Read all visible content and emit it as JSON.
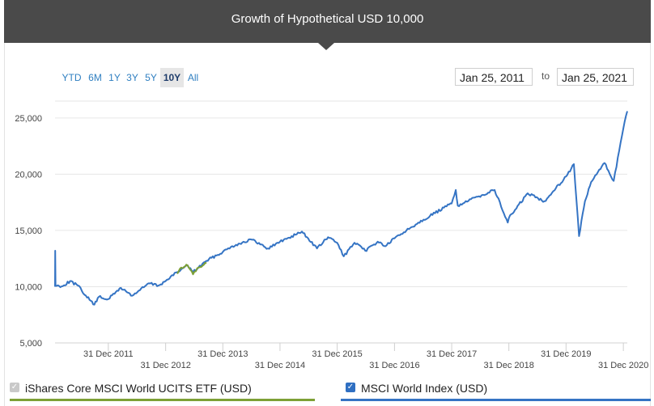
{
  "header": {
    "title": "Growth of Hypothetical USD 10,000"
  },
  "toolbar": {
    "ranges": [
      {
        "label": "YTD",
        "active": false
      },
      {
        "label": "6M",
        "active": false
      },
      {
        "label": "1Y",
        "active": false
      },
      {
        "label": "3Y",
        "active": false
      },
      {
        "label": "5Y",
        "active": false
      },
      {
        "label": "10Y",
        "active": true
      },
      {
        "label": "All",
        "active": false
      }
    ],
    "from_date": "Jan 25, 2011",
    "to_label": "to",
    "to_date": "Jan 25, 2021"
  },
  "legend": [
    {
      "label": "iShares Core MSCI World UCITS ETF (USD)",
      "checked": true,
      "color": "#7da036",
      "box_color": "#c9c9c9"
    },
    {
      "label": "MSCI World Index (USD)",
      "checked": true,
      "color": "#3574c4",
      "box_color": "#2f6fc2"
    }
  ],
  "chart_data": {
    "type": "line",
    "title": "Growth of Hypothetical USD 10,000",
    "xlabel": "",
    "ylabel": "",
    "ylim": [
      5000,
      26500
    ],
    "xlim": [
      "2011-01-25",
      "2021-01-25"
    ],
    "yticks": [
      5000,
      10000,
      15000,
      20000,
      25000
    ],
    "ytick_labels": [
      "5,000",
      "10,000",
      "15,000",
      "20,000",
      "25,000"
    ],
    "xtick_dates": [
      "2011-12-31",
      "2012-12-31",
      "2013-12-31",
      "2014-12-31",
      "2015-12-31",
      "2016-12-31",
      "2017-12-31",
      "2018-12-31",
      "2019-12-31",
      "2020-12-31"
    ],
    "xtick_labels": [
      "31 Dec 2011",
      "31 Dec 2012",
      "31 Dec 2013",
      "31 Dec 2014",
      "31 Dec 2015",
      "31 Dec 2016",
      "31 Dec 2017",
      "31 Dec 2018",
      "31 Dec 2019",
      "31 Dec 2020"
    ],
    "grid": true,
    "legend_position": "bottom",
    "series": [
      {
        "name": "MSCI World Index (USD)",
        "color": "#3574c4",
        "points": [
          [
            "2011-01-25",
            10000
          ],
          [
            "2011-01-26",
            13200
          ],
          [
            "2011-01-28",
            10100
          ],
          [
            "2011-03-15",
            10050
          ],
          [
            "2011-05-01",
            10500
          ],
          [
            "2011-06-20",
            10100
          ],
          [
            "2011-08-10",
            9200
          ],
          [
            "2011-10-03",
            8400
          ],
          [
            "2011-11-01",
            9100
          ],
          [
            "2011-12-31",
            8900
          ],
          [
            "2012-03-20",
            9900
          ],
          [
            "2012-06-01",
            9200
          ],
          [
            "2012-09-15",
            10300
          ],
          [
            "2012-11-15",
            10100
          ],
          [
            "2012-12-31",
            10500
          ],
          [
            "2013-03-15",
            11300
          ],
          [
            "2013-05-20",
            11900
          ],
          [
            "2013-06-24",
            11300
          ],
          [
            "2013-09-18",
            12300
          ],
          [
            "2013-12-31",
            13100
          ],
          [
            "2014-03-01",
            13600
          ],
          [
            "2014-06-30",
            14200
          ],
          [
            "2014-10-15",
            13400
          ],
          [
            "2014-12-31",
            14000
          ],
          [
            "2015-05-20",
            14900
          ],
          [
            "2015-08-24",
            13400
          ],
          [
            "2015-11-03",
            14400
          ],
          [
            "2015-12-31",
            13900
          ],
          [
            "2016-02-11",
            12700
          ],
          [
            "2016-04-20",
            13900
          ],
          [
            "2016-06-27",
            13200
          ],
          [
            "2016-09-15",
            14000
          ],
          [
            "2016-11-04",
            13600
          ],
          [
            "2016-12-31",
            14300
          ],
          [
            "2017-06-01",
            15700
          ],
          [
            "2017-12-31",
            17400
          ],
          [
            "2018-01-26",
            18600
          ],
          [
            "2018-02-08",
            17200
          ],
          [
            "2018-06-15",
            18000
          ],
          [
            "2018-10-01",
            18600
          ],
          [
            "2018-12-24",
            15700
          ],
          [
            "2018-12-31",
            16100
          ],
          [
            "2019-04-30",
            18300
          ],
          [
            "2019-08-15",
            17600
          ],
          [
            "2019-12-31",
            19800
          ],
          [
            "2020-02-19",
            20900
          ],
          [
            "2020-03-23",
            14500
          ],
          [
            "2020-04-30",
            17600
          ],
          [
            "2020-06-08",
            19300
          ],
          [
            "2020-09-02",
            21000
          ],
          [
            "2020-10-30",
            19400
          ],
          [
            "2020-12-31",
            24100
          ],
          [
            "2021-01-25",
            25600
          ]
        ]
      },
      {
        "name": "iShares Core MSCI World UCITS ETF (USD)",
        "color": "#7da036",
        "points": [
          [
            "2013-03-15",
            11150
          ],
          [
            "2013-04-10",
            11700
          ],
          [
            "2013-05-20",
            11900
          ],
          [
            "2013-06-24",
            11100
          ],
          [
            "2013-07-30",
            11700
          ],
          [
            "2013-09-18",
            12100
          ]
        ]
      }
    ]
  }
}
